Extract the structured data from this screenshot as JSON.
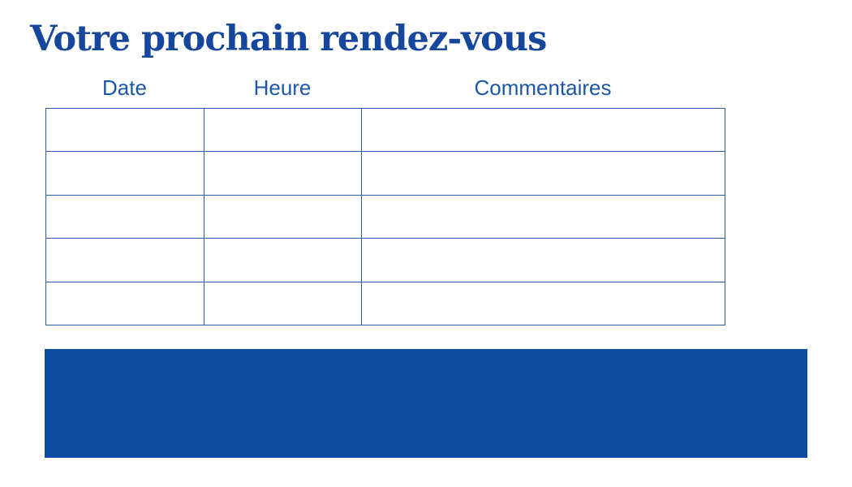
{
  "page": {
    "title": "Votre prochain rendez-vous"
  },
  "colors": {
    "title": "#17479d",
    "header_text": "#1d56a8",
    "table_border": "#2b5bad",
    "banner": "#0c4da2",
    "background": "#ffffff"
  },
  "table": {
    "headers": [
      "Date",
      "Heure",
      "Commentaires"
    ],
    "rows": [
      [
        "",
        "",
        ""
      ],
      [
        "",
        "",
        ""
      ],
      [
        "",
        "",
        ""
      ],
      [
        "",
        "",
        ""
      ],
      [
        "",
        "",
        ""
      ]
    ]
  }
}
